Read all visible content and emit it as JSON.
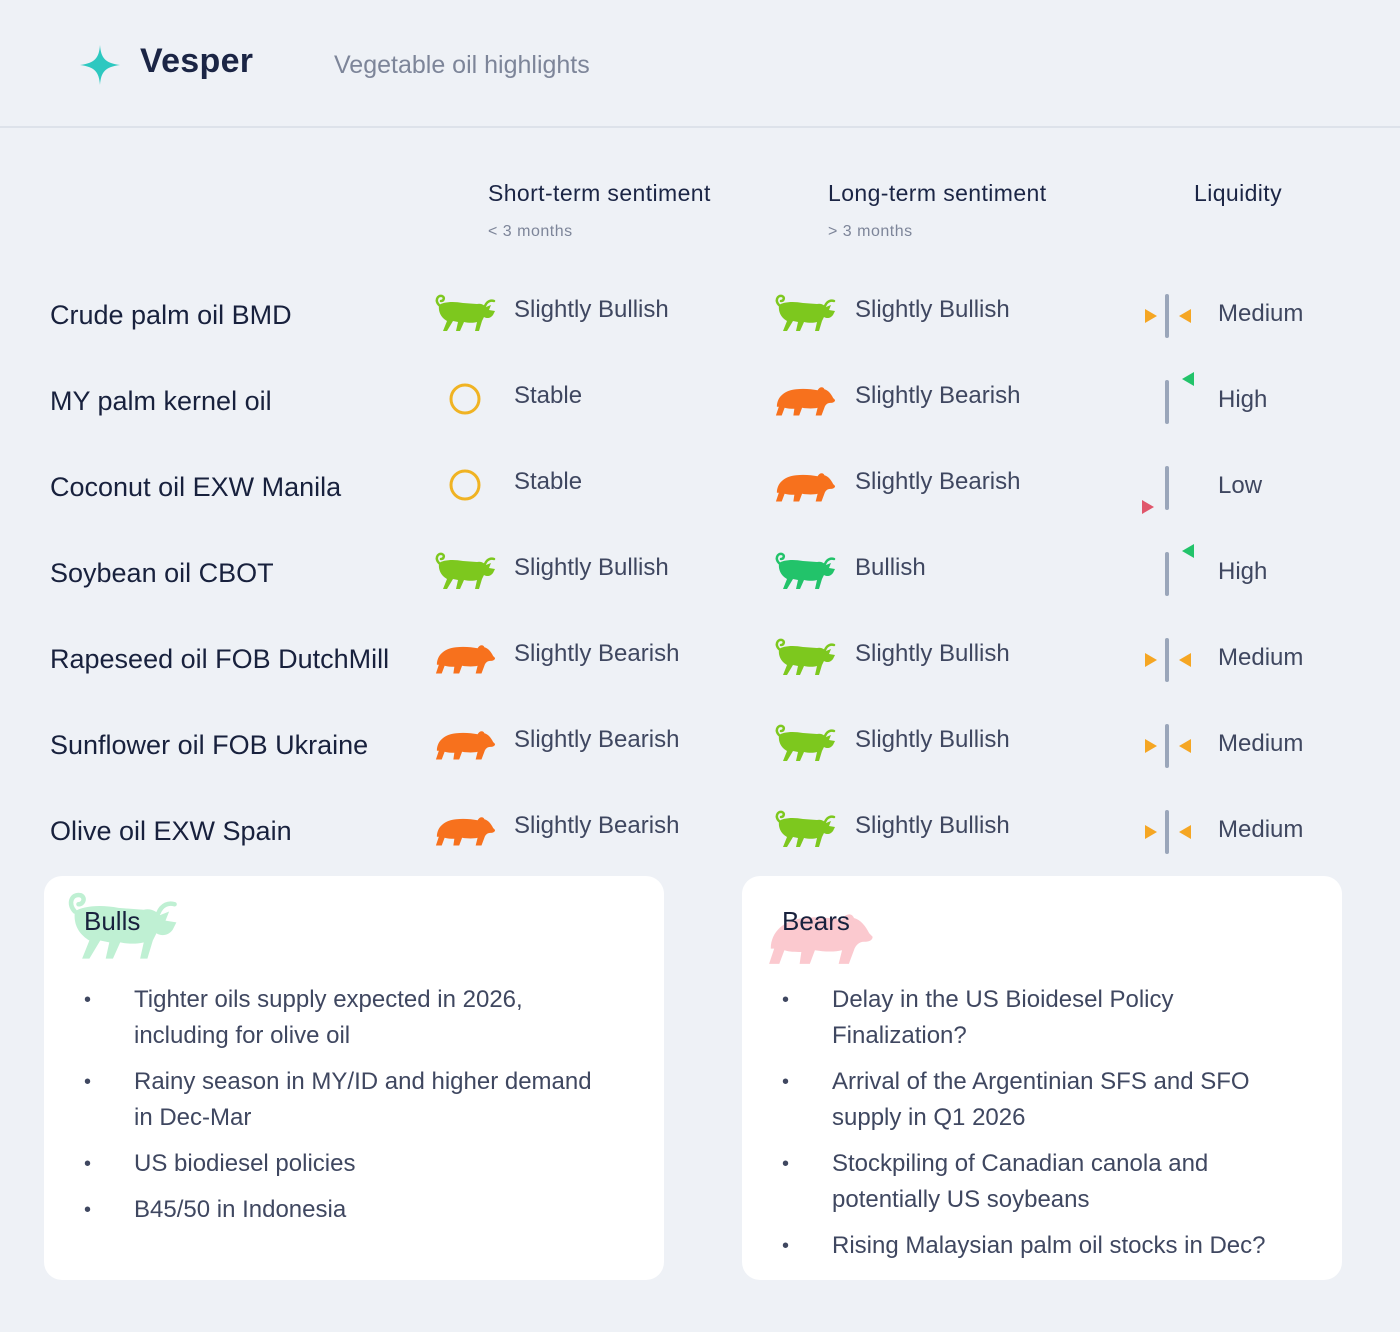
{
  "header": {
    "brand": "Vesper",
    "subtitle": "Vegetable oil highlights"
  },
  "columns": {
    "short_term": {
      "title": "Short-term sentiment",
      "subtitle": "< 3 months"
    },
    "long_term": {
      "title": "Long-term sentiment",
      "subtitle": "> 3 months"
    },
    "liquidity": {
      "title": "Liquidity"
    }
  },
  "colors": {
    "slightly_bullish": "#7dc81e",
    "bullish": "#22c36a",
    "bearish": "#f7711d",
    "stable": "#f0b323",
    "liq_medium": "#f5a623",
    "liq_high": "#22c36a",
    "liq_low": "#e0566b",
    "bull_card_art": "#bff0d3",
    "bear_card_art": "#fbc9cf"
  },
  "rows": [
    {
      "commodity": "Crude palm oil BMD",
      "short": {
        "label": "Slightly Bullish",
        "icon": "bull-icon"
      },
      "long": {
        "label": "Slightly Bullish",
        "icon": "bull-icon"
      },
      "liquidity": {
        "label": "Medium",
        "icon": "liquidity-medium-icon"
      }
    },
    {
      "commodity": "MY palm kernel oil",
      "short": {
        "label": "Stable",
        "icon": "stable-circle-icon"
      },
      "long": {
        "label": "Slightly Bearish",
        "icon": "bear-icon"
      },
      "liquidity": {
        "label": "High",
        "icon": "liquidity-high-icon"
      }
    },
    {
      "commodity": "Coconut oil EXW Manila",
      "short": {
        "label": "Stable",
        "icon": "stable-circle-icon"
      },
      "long": {
        "label": "Slightly Bearish",
        "icon": "bear-icon"
      },
      "liquidity": {
        "label": "Low",
        "icon": "liquidity-low-icon"
      }
    },
    {
      "commodity": "Soybean oil CBOT",
      "short": {
        "label": "Slightly Bullish",
        "icon": "bull-icon"
      },
      "long": {
        "label": "Bullish",
        "icon": "bull-icon"
      },
      "liquidity": {
        "label": "High",
        "icon": "liquidity-high-icon"
      }
    },
    {
      "commodity": "Rapeseed oil FOB DutchMill",
      "short": {
        "label": "Slightly Bearish",
        "icon": "bear-icon"
      },
      "long": {
        "label": "Slightly Bullish",
        "icon": "bull-icon"
      },
      "liquidity": {
        "label": "Medium",
        "icon": "liquidity-medium-icon"
      }
    },
    {
      "commodity": "Sunflower oil FOB Ukraine",
      "short": {
        "label": "Slightly Bearish",
        "icon": "bear-icon"
      },
      "long": {
        "label": "Slightly Bullish",
        "icon": "bull-icon"
      },
      "liquidity": {
        "label": "Medium",
        "icon": "liquidity-medium-icon"
      }
    },
    {
      "commodity": "Olive oil EXW Spain",
      "short": {
        "label": "Slightly Bearish",
        "icon": "bear-icon"
      },
      "long": {
        "label": "Slightly Bullish",
        "icon": "bull-icon"
      },
      "liquidity": {
        "label": "Medium",
        "icon": "liquidity-medium-icon"
      }
    }
  ],
  "bulls": {
    "title": "Bulls",
    "icon": "bull-icon",
    "items": [
      "Tighter oils supply expected in 2026, including for olive oil",
      "Rainy season in MY/ID and higher demand in Dec-Mar",
      "US biodiesel policies",
      "B45/50 in Indonesia"
    ]
  },
  "bears": {
    "title": "Bears",
    "icon": "bear-icon",
    "items": [
      "Delay in the US Bioidesel Policy Finalization?",
      "Arrival of the Argentinian SFS and SFO supply in Q1 2026",
      "Stockpiling of Canadian canola and potentially US soybeans",
      "Rising Malaysian palm oil stocks in Dec?"
    ]
  }
}
